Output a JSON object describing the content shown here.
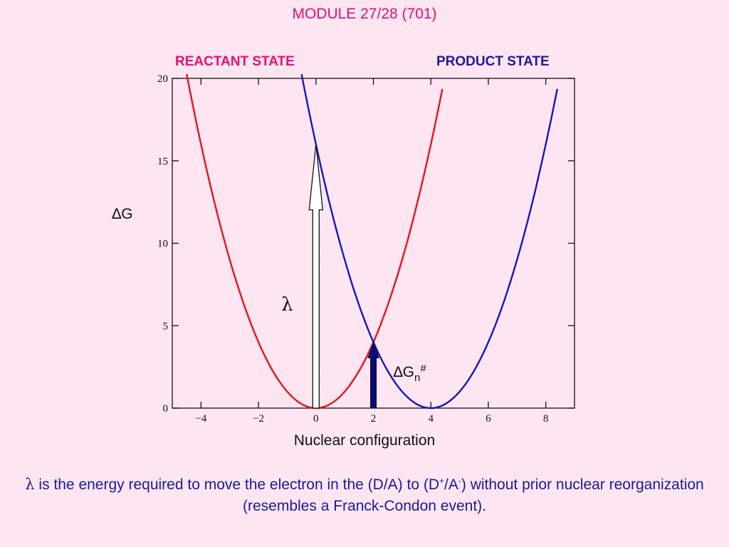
{
  "slide_title": "MODULE 27/28 (701)",
  "chart_data": {
    "type": "line",
    "xlabel": "Nuclear configuration",
    "ylabel": "∆G",
    "xlim": [
      -5,
      9
    ],
    "ylim": [
      0,
      20
    ],
    "x_ticks": [
      -4,
      -2,
      0,
      2,
      4,
      6,
      8
    ],
    "x_tick_labels": [
      "−4",
      "−2",
      "0",
      "2",
      "4",
      "6",
      "8"
    ],
    "y_ticks": [
      0,
      5,
      10,
      15,
      20
    ],
    "y_tick_labels": [
      "0",
      "5",
      "10",
      "15",
      "20"
    ],
    "grid": false,
    "series": [
      {
        "name": "REACTANT STATE",
        "color": "#e8141e",
        "center": 0,
        "curvature": 1.0,
        "x_range": [
          -4.5,
          4.4
        ]
      },
      {
        "name": "PRODUCT STATE",
        "color": "#1515c8",
        "center": 4,
        "curvature": 1.0,
        "x_range": [
          -0.5,
          8.4
        ]
      }
    ],
    "annotations": [
      {
        "type": "hollow-arrow",
        "x": 0,
        "y_from": 0,
        "y_to": 16,
        "label": "λ",
        "label_pos": [
          -1.0,
          6.3
        ]
      },
      {
        "type": "solid-arrow",
        "x": 2,
        "y_from": 0,
        "y_to": 4,
        "color": "#0a0a80",
        "label": "∆Gn#",
        "label_pos": [
          2.7,
          2.2
        ]
      }
    ]
  },
  "annotation_labels": {
    "lambda": "λ",
    "dg_base": "∆G",
    "dg_sub": "n",
    "dg_sup": "#"
  },
  "caption": {
    "lambda_symbol": "λ",
    "part1": " is the energy required to move the electron in the (D/A) to (D",
    "sup1": "+",
    "part2": "/A",
    "sup2": "-",
    "part3": ") without prior nuclear reorganization (resembles a Franck-Condon event)."
  }
}
